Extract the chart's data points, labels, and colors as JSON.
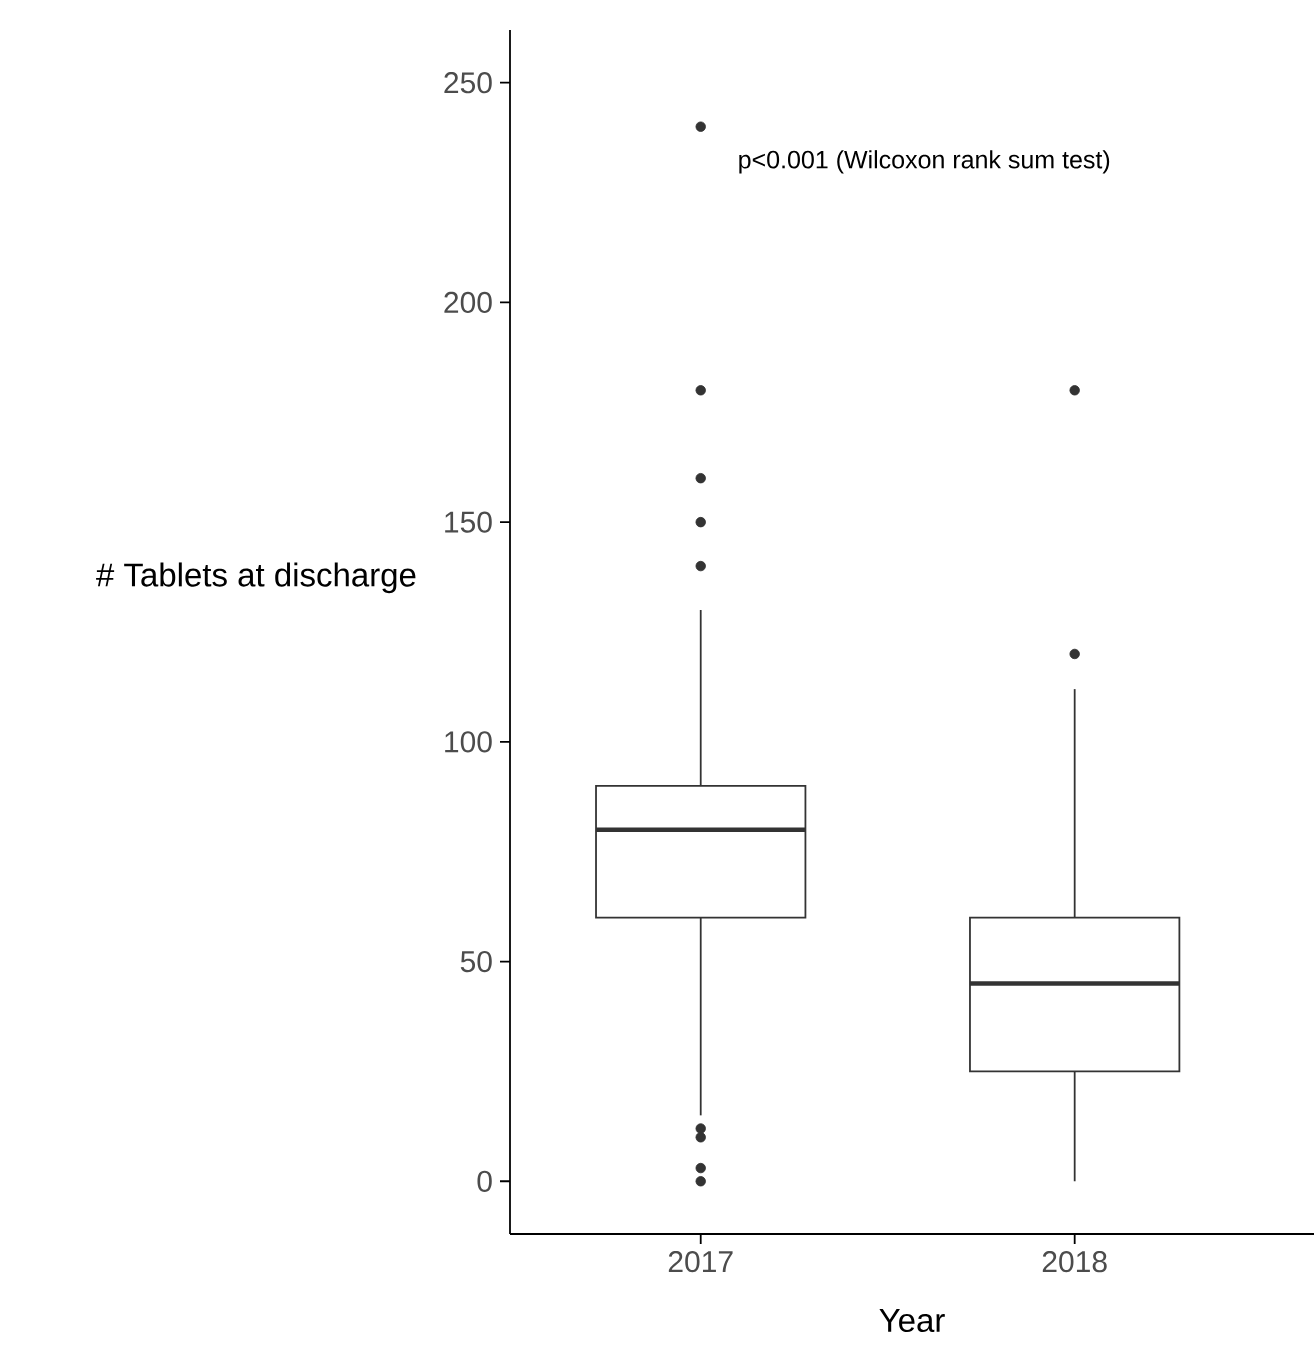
{
  "chart_data": {
    "type": "box",
    "xlabel": "Year",
    "ylabel": "# Tablets at discharge",
    "categories": [
      "2017",
      "2018"
    ],
    "color": "#333333",
    "boxes": [
      {
        "low": 15,
        "q1": 60,
        "median": 80,
        "q3": 90,
        "high": 130,
        "outliers": [
          240,
          180,
          160,
          150,
          140,
          12,
          10,
          3,
          0
        ]
      },
      {
        "low": 0,
        "q1": 25,
        "median": 45,
        "q3": 60,
        "high": 112,
        "outliers": [
          180,
          120
        ]
      }
    ],
    "ylim": [
      -12,
      262
    ],
    "yticks": [
      0,
      50,
      100,
      150,
      200,
      250
    ],
    "annotations": [
      "p<0.001 (Wilcoxon rank sum test)"
    ]
  }
}
